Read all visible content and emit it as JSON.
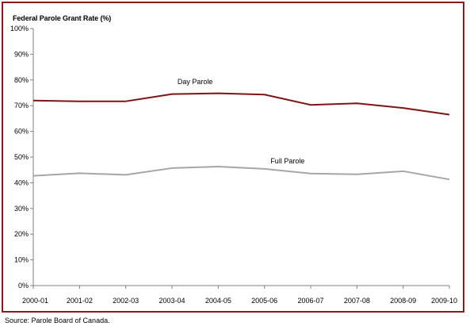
{
  "chart_data": {
    "type": "line",
    "title": "Federal Parole Grant Rate (%)",
    "xlabel": "",
    "ylabel": "",
    "categories": [
      "2000-01",
      "2001-02",
      "2002-03",
      "2003-04",
      "2004-05",
      "2005-06",
      "2006-07",
      "2007-08",
      "2008-09",
      "2009-10"
    ],
    "ylim": [
      0,
      100
    ],
    "yticks": [
      "0%",
      "10%",
      "20%",
      "30%",
      "40%",
      "50%",
      "60%",
      "70%",
      "80%",
      "90%",
      "100%"
    ],
    "grid": false,
    "legend": "none",
    "series": [
      {
        "name": "Day Parole",
        "color": "#7f1416",
        "values": [
          72,
          71.7,
          71.7,
          74.5,
          74.8,
          74.3,
          70.3,
          70.9,
          69.1,
          66.5
        ]
      },
      {
        "name": "Full Parole",
        "color": "#a6a6a6",
        "values": [
          42.7,
          43.7,
          43.1,
          45.7,
          46.3,
          45.4,
          43.6,
          43.3,
          44.5,
          41.3
        ]
      }
    ]
  },
  "source": "Source:  Parole Board of Canada."
}
